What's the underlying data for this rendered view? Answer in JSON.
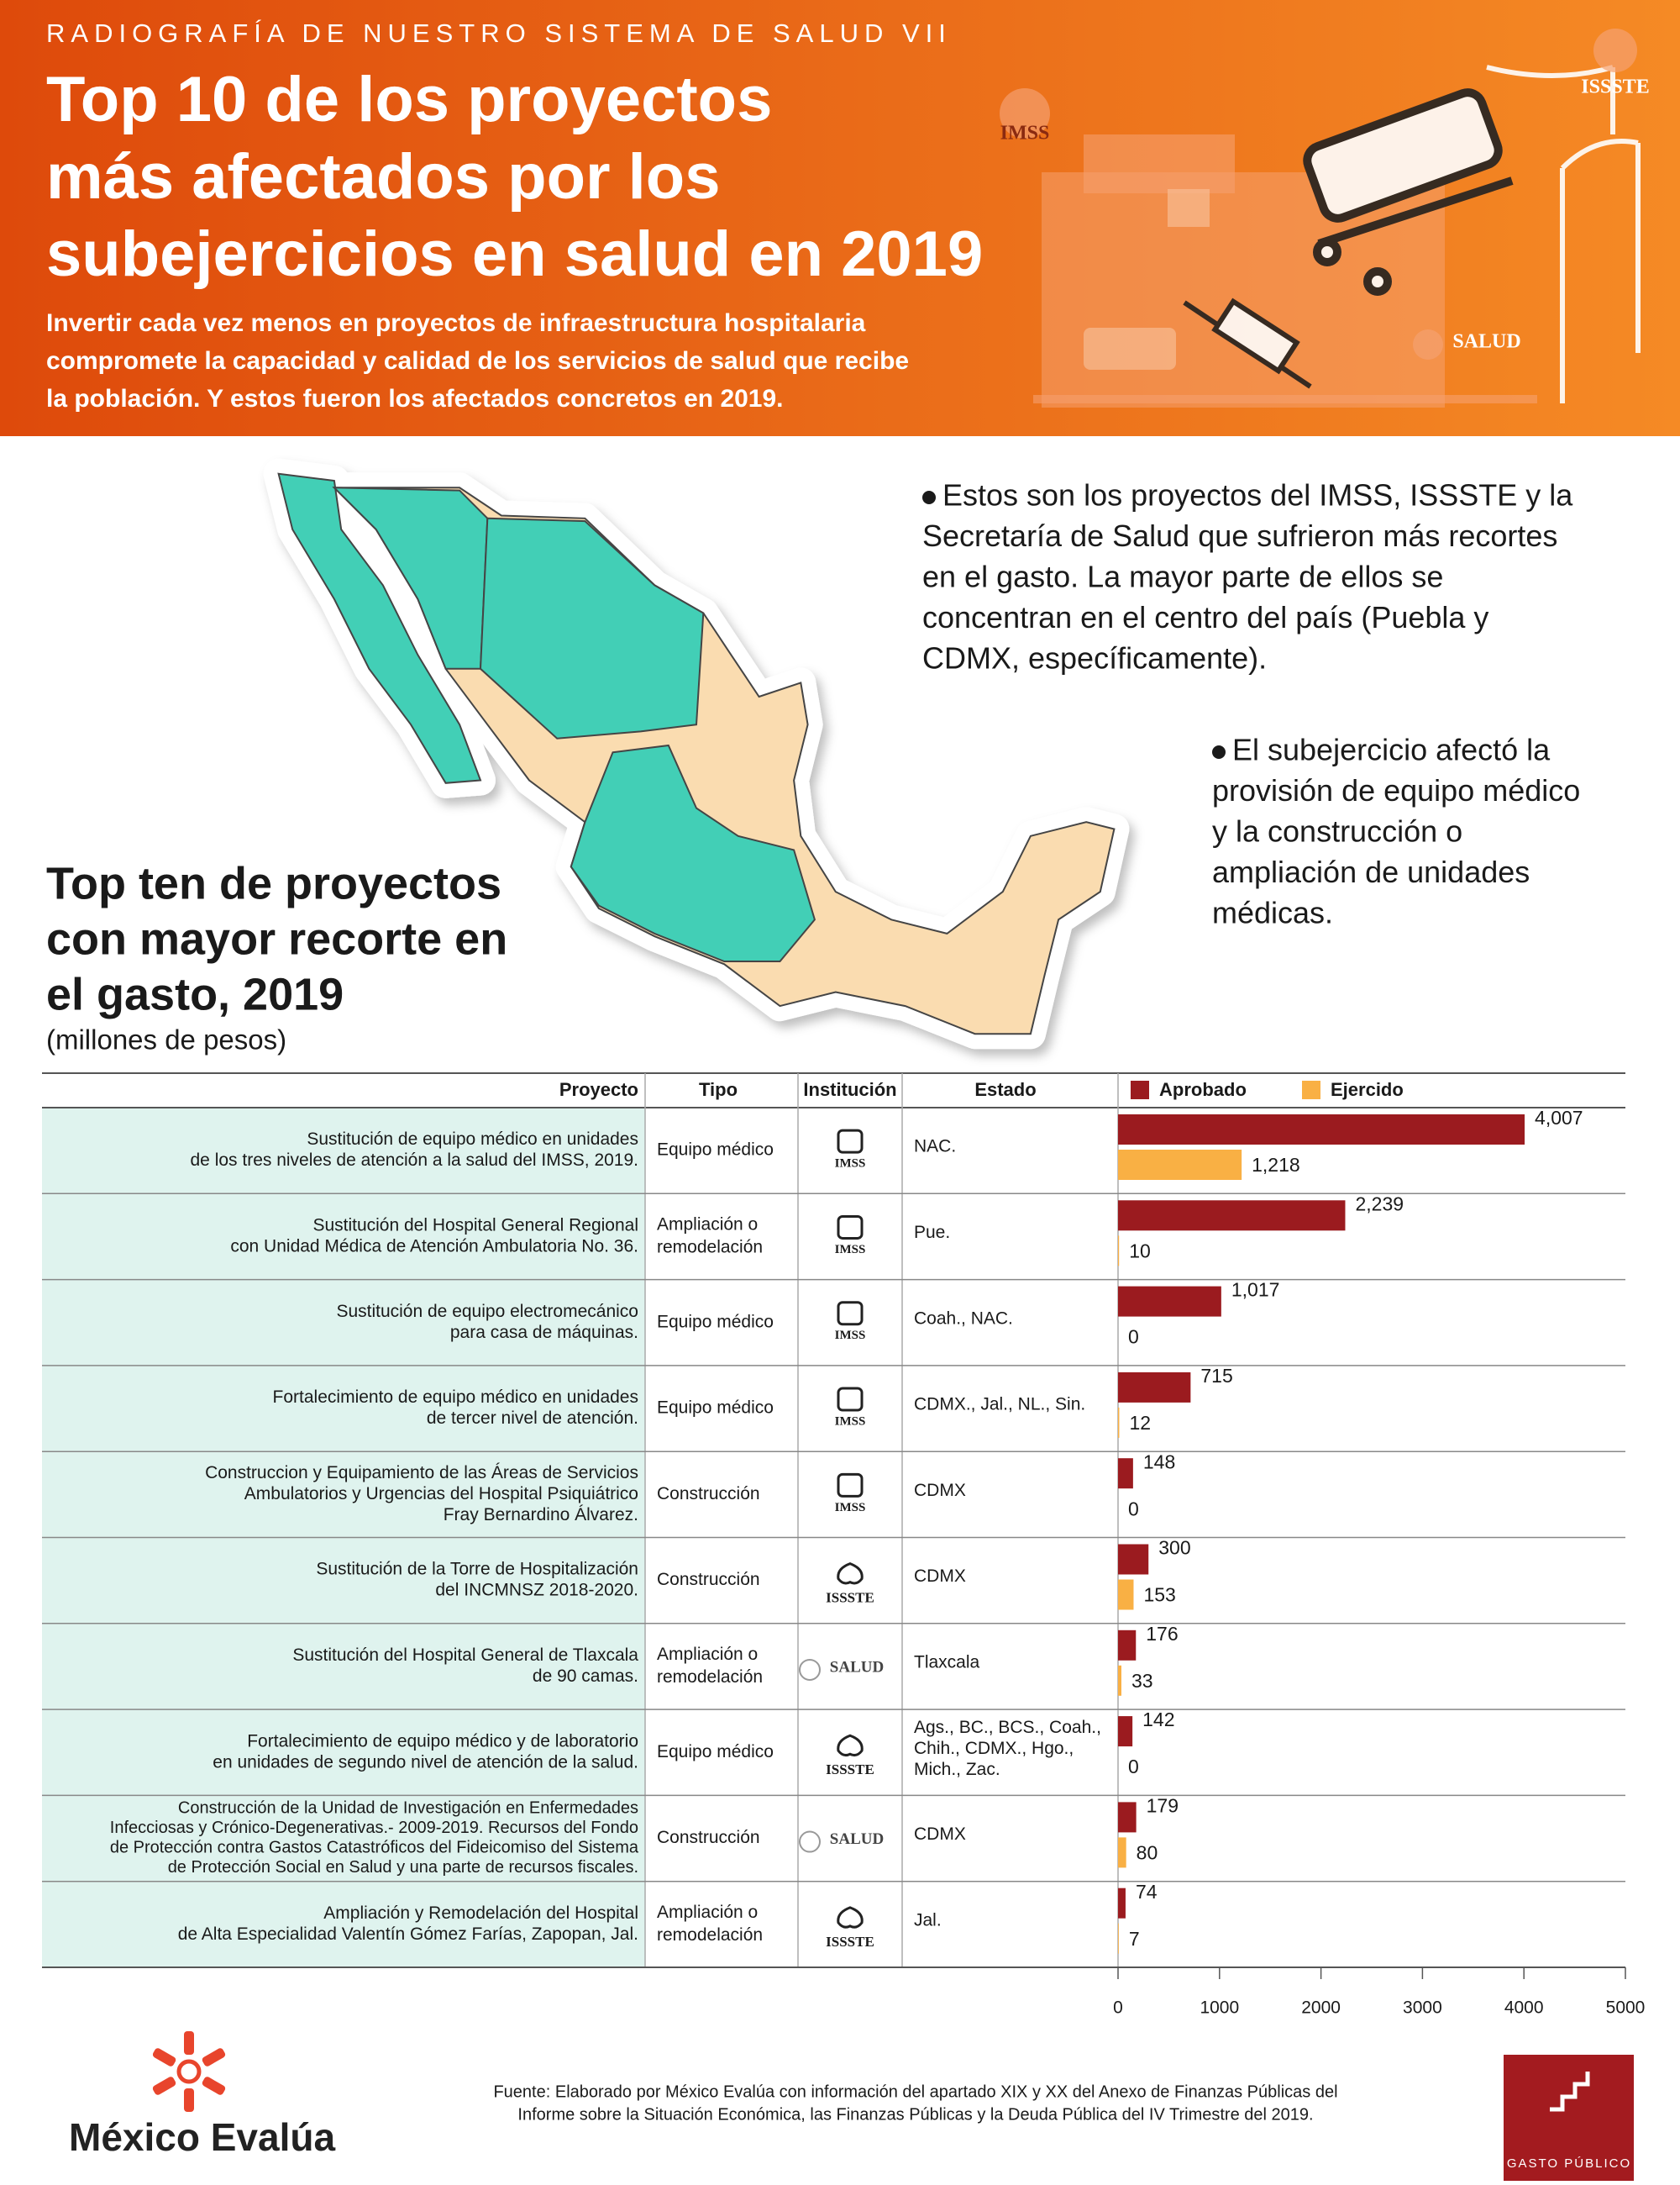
{
  "header": {
    "kicker": "RADIOGRAFÍA DE NUESTRO SISTEMA DE SALUD VII",
    "title": [
      "Top 10 de los proyectos",
      "más afectados por los",
      "subejercicios en salud en 2019"
    ],
    "description": [
      "Invertir cada vez menos en proyectos de infraestructura hospitalaria",
      "compromete la capacidad y calidad de los servicios de salud que recibe",
      "la población. Y estos fueron los afectados concretos en 2019."
    ],
    "logos": [
      "IMSS",
      "ISSSTE",
      "SALUD"
    ]
  },
  "bullets": [
    [
      "Estos son los proyectos del IMSS, ISSSTE y la",
      "Secretaría de Salud que sufrieron más recortes",
      "en el gasto. La mayor parte de ellos se",
      "concentran en el centro del país (Puebla y",
      "CDMX, específicamente)."
    ],
    [
      "El subejercicio afectó la",
      "provisión de equipo médico",
      "y la construcción o",
      "ampliación de unidades",
      "médicas."
    ]
  ],
  "chart_data": {
    "type": "bar",
    "orientation": "horizontal",
    "title": [
      "Top ten de proyectos",
      "con mayor recorte en",
      "el gasto, 2019"
    ],
    "subtitle": "(millones de pesos)",
    "columns": [
      "Proyecto",
      "Tipo",
      "Institución",
      "Estado"
    ],
    "rows": [
      {
        "proyecto": [
          "Sustitución de equipo médico en unidades",
          "de los tres niveles de atención a la salud del IMSS, 2019."
        ],
        "tipo": [
          "Equipo médico"
        ],
        "institucion": "IMSS",
        "estado": [
          "NAC."
        ]
      },
      {
        "proyecto": [
          "Sustitución del Hospital General Regional",
          "con Unidad Médica de Atención Ambulatoria No. 36."
        ],
        "tipo": [
          "Ampliación o",
          "remodelación"
        ],
        "institucion": "IMSS",
        "estado": [
          "Pue."
        ]
      },
      {
        "proyecto": [
          "Sustitución de equipo electromecánico",
          "para casa de máquinas."
        ],
        "tipo": [
          "Equipo médico"
        ],
        "institucion": "IMSS",
        "estado": [
          "Coah., NAC."
        ]
      },
      {
        "proyecto": [
          "Fortalecimiento de equipo médico en unidades",
          "de tercer nivel de atención."
        ],
        "tipo": [
          "Equipo médico"
        ],
        "institucion": "IMSS",
        "estado": [
          "CDMX., Jal., NL., Sin."
        ]
      },
      {
        "proyecto": [
          "Construccion y Equipamiento de las Áreas de Servicios",
          "Ambulatorios y Urgencias del Hospital Psiquiátrico",
          "Fray Bernardino Álvarez."
        ],
        "tipo": [
          "Construcción"
        ],
        "institucion": "IMSS",
        "estado": [
          "CDMX"
        ]
      },
      {
        "proyecto": [
          "Sustitución de la Torre de Hospitalización",
          "del INCMNSZ 2018-2020."
        ],
        "tipo": [
          "Construcción"
        ],
        "institucion": "ISSSTE",
        "estado": [
          "CDMX"
        ]
      },
      {
        "proyecto": [
          "Sustitución del Hospital General de Tlaxcala",
          "de 90 camas."
        ],
        "tipo": [
          "Ampliación o",
          "remodelación"
        ],
        "institucion": "SALUD",
        "estado": [
          "Tlaxcala"
        ]
      },
      {
        "proyecto": [
          "Fortalecimiento de equipo médico y de laboratorio",
          "en unidades de segundo nivel de atención de la salud."
        ],
        "tipo": [
          "Equipo médico"
        ],
        "institucion": "ISSSTE",
        "estado": [
          "Ags., BC., BCS., Coah.,",
          "Chih., CDMX., Hgo.,",
          "Mich., Zac."
        ]
      },
      {
        "proyecto": [
          "Construcción de la Unidad de Investigación en Enfermedades",
          "Infecciosas y Crónico-Degenerativas.- 2009-2019. Recursos del Fondo",
          "de Protección contra Gastos Catastróficos del Fideicomiso del Sistema",
          "de Protección Social en Salud y una parte de recursos fiscales."
        ],
        "tipo": [
          "Construcción"
        ],
        "institucion": "SALUD",
        "estado": [
          "CDMX"
        ]
      },
      {
        "proyecto": [
          "Ampliación y Remodelación del Hospital",
          "de Alta Especialidad Valentín Gómez Farías, Zapopan, Jal."
        ],
        "tipo": [
          "Ampliación o",
          "remodelación"
        ],
        "institucion": "ISSSTE",
        "estado": [
          "Jal."
        ]
      }
    ],
    "series": [
      {
        "name": "Aprobado",
        "color": "#9b1b1f",
        "values": [
          4007,
          2239,
          1017,
          715,
          148,
          300,
          176,
          142,
          179,
          74
        ],
        "value_labels": [
          "4,007",
          "2,239",
          "1,017",
          "715",
          "148",
          "300",
          "176",
          "142",
          "179",
          "74"
        ]
      },
      {
        "name": "Ejercido",
        "color": "#f9b044",
        "values": [
          1218,
          10,
          0,
          12,
          0,
          153,
          33,
          0,
          80,
          7
        ],
        "value_labels": [
          "1,218",
          "10",
          "0",
          "12",
          "0",
          "153",
          "33",
          "0",
          "80",
          "7"
        ]
      }
    ],
    "xlim": [
      0,
      5000
    ],
    "xticks": [
      0,
      1000,
      2000,
      3000,
      4000,
      5000
    ]
  },
  "footer": {
    "source": [
      "Fuente: Elaborado por México Evalúa con información del apartado XIX y XX del Anexo de Finanzas Públicas del",
      "Informe sobre la Situación Económica, las Finanzas Públicas y la Deuda Pública del IV Trimestre del 2019."
    ],
    "brand": "México Evalúa",
    "badge": "GASTO PÚBLICO"
  }
}
